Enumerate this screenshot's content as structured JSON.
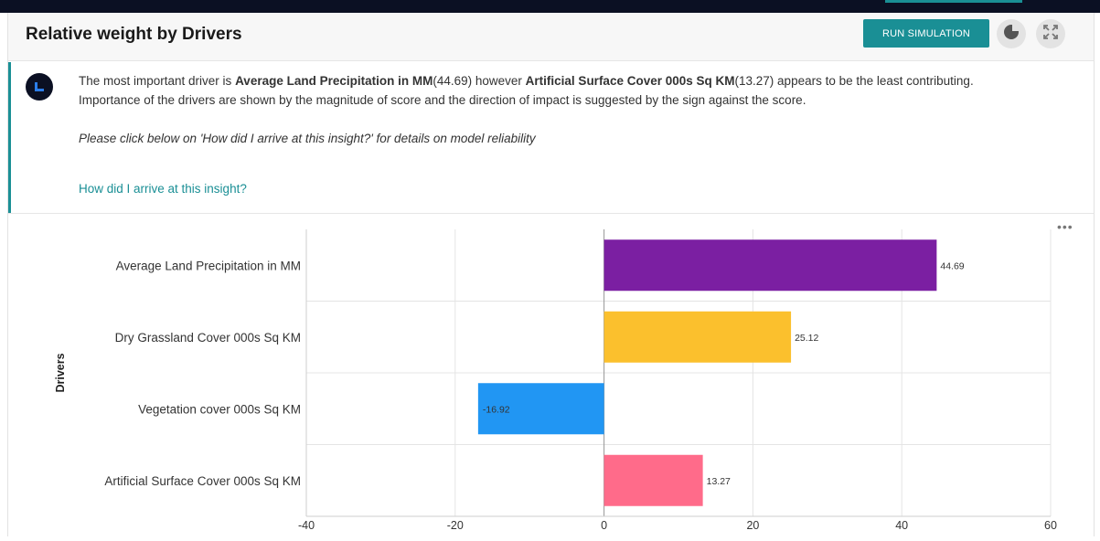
{
  "header": {
    "title": "Relative weight by Drivers",
    "run_button": "RUN SIMULATION"
  },
  "insight": {
    "l1_a": "The most important driver is ",
    "top_driver": "Average Land Precipitation in MM",
    "top_value": "(44.69)",
    "l1_b": " however ",
    "least_driver": "Artificial Surface Cover 000s Sq KM",
    "least_value": "(13.27)",
    "l1_c": " appears to be the least contributing.",
    "line2": "Importance of the drivers are shown by the magnitude of score and the direction of impact is suggested by the sign against the score.",
    "note": "Please click below on 'How did I arrive at this insight?' for details on model reliability",
    "link": "How did I arrive at this insight?"
  },
  "chart_data": {
    "type": "bar",
    "orientation": "horizontal",
    "ylabel": "Drivers",
    "categories": [
      "Average Land Precipitation in MM",
      "Dry Grassland Cover 000s Sq KM",
      "Vegetation cover 000s Sq KM",
      "Artificial Surface Cover 000s Sq KM"
    ],
    "values": [
      44.69,
      25.12,
      -16.92,
      13.27
    ],
    "value_labels": [
      "44.69",
      "25.12",
      "-16.92",
      "13.27"
    ],
    "colors": [
      "#7b1fa2",
      "#fbc02d",
      "#2196f3",
      "#ff6b8a"
    ],
    "xlim": [
      -40,
      60
    ],
    "xticks": [
      -40,
      -20,
      0,
      20,
      40,
      60
    ],
    "grid": true
  }
}
